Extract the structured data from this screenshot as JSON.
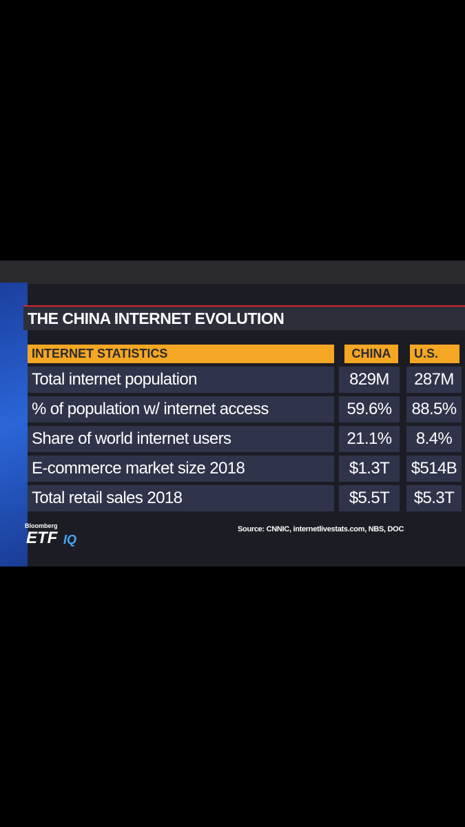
{
  "title": "THE CHINA INTERNET EVOLUTION",
  "table": {
    "header": [
      "INTERNET STATISTICS",
      "CHINA",
      "U.S."
    ],
    "rows": [
      [
        "Total internet population",
        "829M",
        "287M"
      ],
      [
        "% of population w/ internet access",
        "59.6%",
        "88.5%"
      ],
      [
        "Share of world internet users",
        "21.1%",
        "8.4%"
      ],
      [
        "E-commerce market size 2018",
        "$1.3T",
        "$514B"
      ],
      [
        "Total retail sales 2018",
        "$5.5T",
        "$5.3T"
      ]
    ]
  },
  "source": "Source: CNNIC, internetlivestats.com, NBS, DOC",
  "logo": {
    "brand": "Bloomberg",
    "show": "ETF",
    "suffix": "IQ"
  }
}
